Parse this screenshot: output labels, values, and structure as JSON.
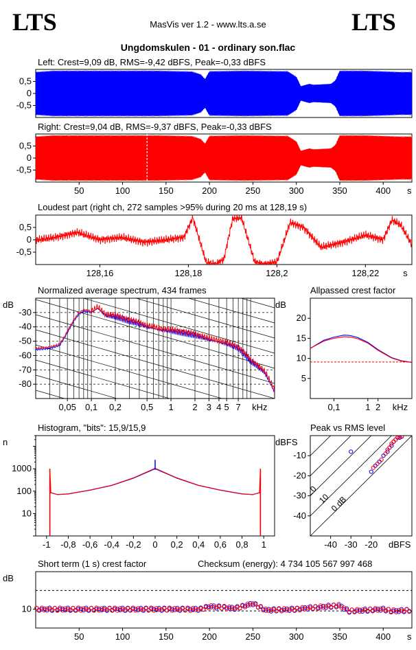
{
  "header": {
    "logo_left": "LTS",
    "logo_right": "LTS",
    "app": "MasVis ver 1.2 - www.lts.a.se",
    "track_title": "Ungdomskulen - 01 - ordinary son.flac"
  },
  "chart_data": [
    {
      "id": "left",
      "type": "area",
      "title": "Left: Crest=9,09 dB, RMS=-9,42 dBFS, Peak=-0,33 dBFS",
      "color": "#0000ff",
      "ylim": [
        -1,
        1
      ],
      "yticks": [
        "0,5",
        "0",
        "-0,5"
      ],
      "ytick_values": [
        0.5,
        0,
        -0.5
      ],
      "xlim": [
        0,
        433
      ],
      "envelope_x": [
        0,
        20,
        100,
        140,
        180,
        190,
        195,
        200,
        240,
        290,
        300,
        305,
        310,
        315,
        320,
        330,
        340,
        345,
        350,
        380,
        420,
        433
      ],
      "envelope_y": [
        0.9,
        0.95,
        0.95,
        0.95,
        0.92,
        0.8,
        0.6,
        0.93,
        0.95,
        0.93,
        0.7,
        0.3,
        0.35,
        0.4,
        0.36,
        0.38,
        0.4,
        0.55,
        0.95,
        0.95,
        0.9,
        0.9
      ]
    },
    {
      "id": "right",
      "type": "area",
      "title": "Right: Crest=9,04 dB, RMS=-9,37 dBFS, Peak=-0,33 dBFS",
      "color": "#ff0000",
      "ylim": [
        -1,
        1
      ],
      "yticks": [
        "0,5",
        "0",
        "-0,5"
      ],
      "ytick_values": [
        0.5,
        0,
        -0.5
      ],
      "xlim": [
        0,
        433
      ],
      "xticks": [
        "50",
        "100",
        "150",
        "200",
        "250",
        "300",
        "350",
        "400",
        "s"
      ],
      "xtick_values": [
        50,
        100,
        150,
        200,
        250,
        300,
        350,
        400,
        430
      ],
      "marker_x": 128.19,
      "envelope_x": [
        0,
        20,
        100,
        140,
        180,
        190,
        195,
        200,
        240,
        290,
        300,
        305,
        310,
        315,
        320,
        330,
        340,
        345,
        350,
        380,
        420,
        433
      ],
      "envelope_y": [
        0.9,
        0.95,
        0.95,
        0.95,
        0.92,
        0.8,
        0.6,
        0.93,
        0.95,
        0.93,
        0.7,
        0.3,
        0.35,
        0.4,
        0.36,
        0.38,
        0.4,
        0.55,
        0.95,
        0.95,
        0.9,
        0.9
      ]
    },
    {
      "id": "loudest",
      "type": "line",
      "title": "Loudest part (right ch, 272 samples >95% during 20 ms at 128,19 s)",
      "color": "#ff0000",
      "ylim": [
        -1,
        1
      ],
      "xlim": [
        128.1455,
        128.2305
      ],
      "yticks": [
        "0,5",
        "0",
        "-0,5"
      ],
      "ytick_values": [
        0.5,
        0,
        -0.5
      ],
      "xticks": [
        "128,16",
        "128,18",
        "128,2",
        "128,22",
        "s"
      ],
      "xtick_values": [
        128.16,
        128.18,
        128.2,
        128.22,
        128.229
      ],
      "x": [
        128.146,
        128.15,
        128.155,
        128.16,
        128.165,
        128.17,
        128.175,
        128.179,
        128.181,
        128.184,
        128.186,
        128.188,
        128.19,
        128.192,
        128.195,
        128.197,
        128.2,
        128.203,
        128.206,
        128.21,
        128.215,
        128.22,
        128.224,
        128.226,
        128.228,
        128.2305
      ],
      "y": [
        0.0,
        0.1,
        0.3,
        0.0,
        0.1,
        -0.1,
        0.0,
        0.1,
        0.9,
        -0.9,
        -1.0,
        -0.8,
        0.85,
        0.9,
        -0.9,
        -1.0,
        -0.9,
        0.7,
        0.5,
        -0.3,
        -0.1,
        0.2,
        0.0,
        0.8,
        0.6,
        -0.2
      ]
    },
    {
      "id": "spectrum",
      "type": "line",
      "title": "Normalized average spectrum, 434 frames",
      "ylabel": "dB",
      "xlabel": "kHz",
      "log_x": true,
      "xlim": [
        0.02,
        20
      ],
      "ylim": [
        -90,
        -20
      ],
      "yticks": [
        "-30",
        "-40",
        "-50",
        "-60",
        "-70",
        "-80"
      ],
      "ytick_values": [
        -30,
        -40,
        -50,
        -60,
        -70,
        -80
      ],
      "xticks": [
        "0,05",
        "0,1",
        "0,2",
        "0,5",
        "1",
        "2",
        "3",
        "4",
        "5",
        "7",
        "kHz"
      ],
      "xtick_values": [
        0.05,
        0.1,
        0.2,
        0.5,
        1,
        2,
        3,
        4,
        5,
        7,
        13
      ],
      "series": [
        {
          "color": "#0000ff",
          "x": [
            0.02,
            0.03,
            0.04,
            0.05,
            0.06,
            0.07,
            0.08,
            0.1,
            0.12,
            0.15,
            0.2,
            0.3,
            0.5,
            0.7,
            1,
            2,
            3,
            5,
            7,
            10,
            15,
            20
          ],
          "y": [
            -56,
            -55,
            -53,
            -44,
            -36,
            -31,
            -29,
            -30,
            -27,
            -32,
            -33,
            -36,
            -40,
            -42,
            -43,
            -46,
            -49,
            -52,
            -55,
            -64,
            -72,
            -86
          ]
        },
        {
          "color": "#ff0000",
          "x": [
            0.02,
            0.03,
            0.04,
            0.05,
            0.06,
            0.07,
            0.08,
            0.1,
            0.12,
            0.15,
            0.2,
            0.3,
            0.5,
            0.7,
            1,
            2,
            3,
            5,
            7,
            10,
            15,
            20
          ],
          "y": [
            -55,
            -54,
            -52,
            -43,
            -35,
            -30,
            -28,
            -29,
            -26,
            -31,
            -32,
            -35,
            -39,
            -41,
            -42,
            -45,
            -48,
            -51,
            -54,
            -63,
            -71,
            -84
          ]
        }
      ]
    },
    {
      "id": "allpassed",
      "type": "line",
      "title": "Allpassed crest factor",
      "ylabel": "dB",
      "xlabel": "kHz",
      "log_x": true,
      "xlim": [
        0.02,
        20
      ],
      "ylim": [
        0,
        25
      ],
      "yticks": [
        "20",
        "15",
        "10",
        "5"
      ],
      "ytick_values": [
        20,
        15,
        10,
        5
      ],
      "xticks": [
        "0,1",
        "1",
        "2",
        "kHz"
      ],
      "xtick_values": [
        0.1,
        1,
        2,
        9
      ],
      "reference": 9.09,
      "series": [
        {
          "color": "#0000ff",
          "x": [
            0.02,
            0.05,
            0.1,
            0.2,
            0.3,
            0.5,
            1,
            2,
            5,
            10,
            20
          ],
          "y": [
            12.5,
            14.5,
            15.3,
            15.8,
            15.7,
            15.2,
            14.0,
            12.2,
            10.2,
            9.4,
            9.0
          ]
        },
        {
          "color": "#ff0000",
          "x": [
            0.02,
            0.05,
            0.1,
            0.2,
            0.3,
            0.5,
            1,
            2,
            5,
            10,
            20
          ],
          "y": [
            12.5,
            14.3,
            15.0,
            15.4,
            15.3,
            14.9,
            13.8,
            12.0,
            10.1,
            9.3,
            9.0
          ]
        }
      ]
    },
    {
      "id": "histogram",
      "type": "line",
      "title": "Histogram, \"bits\": 15,9/15,9",
      "ylabel": "n",
      "log_y": true,
      "xlim": [
        -1.1,
        1.1
      ],
      "ylim": [
        1,
        30000
      ],
      "yticks": [
        "1000",
        "100",
        "10"
      ],
      "ytick_values": [
        1000,
        100,
        10
      ],
      "xticks": [
        "-1",
        "-0,8",
        "-0,6",
        "-0,4",
        "-0,2",
        "0",
        "0,2",
        "0,4",
        "0,6",
        "0,8",
        "1"
      ],
      "xtick_values": [
        -1,
        -0.8,
        -0.6,
        -0.4,
        -0.2,
        0,
        0.2,
        0.4,
        0.6,
        0.8,
        1
      ],
      "series": [
        {
          "color": "#0000ff",
          "x": [
            -0.97,
            -0.96,
            -0.9,
            -0.8,
            -0.6,
            -0.4,
            -0.2,
            0,
            0.2,
            0.4,
            0.6,
            0.8,
            0.9,
            0.96,
            0.97
          ],
          "y": [
            80,
            85,
            70,
            75,
            110,
            180,
            380,
            1000,
            380,
            180,
            110,
            75,
            70,
            85,
            80
          ]
        },
        {
          "color": "#ff0000",
          "x": [
            -0.97,
            -0.96,
            -0.9,
            -0.8,
            -0.6,
            -0.4,
            -0.2,
            0,
            0.2,
            0.4,
            0.6,
            0.8,
            0.9,
            0.96,
            0.97
          ],
          "y": [
            1000,
            85,
            70,
            76,
            112,
            182,
            390,
            1050,
            390,
            182,
            112,
            76,
            70,
            85,
            1000
          ]
        }
      ]
    },
    {
      "id": "peak_rms",
      "type": "scatter",
      "title": "Peak vs RMS level",
      "ylabel": "dBFS",
      "xlabel": "dBFS",
      "xlim": [
        -50,
        0
      ],
      "ylim": [
        -50,
        0
      ],
      "yticks": [
        "-10",
        "-20",
        "-30",
        "-40"
      ],
      "ytick_values": [
        -10,
        -20,
        -30,
        -40
      ],
      "xticks": [
        "-40",
        "-30",
        "-20",
        "dBFS"
      ],
      "xtick_values": [
        -40,
        -30,
        -20,
        -6
      ],
      "crest_lines": [
        "40",
        "30",
        "20",
        "10",
        "0 dB"
      ],
      "crest_values": [
        40,
        30,
        20,
        10,
        0
      ],
      "series": [
        {
          "color": "#0000ff",
          "x": [
            -30,
            -20,
            -18,
            -16,
            -14,
            -12,
            -11,
            -10,
            -9,
            -8,
            -7,
            -6,
            -5
          ],
          "y": [
            -8,
            -18,
            -15,
            -13,
            -10,
            -8,
            -6,
            -5,
            -3,
            -2,
            -1,
            -1,
            -0.5
          ]
        },
        {
          "color": "#ff0000",
          "x": [
            -19,
            -17,
            -15,
            -13,
            -12,
            -11,
            -10,
            -9,
            -8,
            -7,
            -6,
            -5
          ],
          "y": [
            -16,
            -14,
            -12,
            -9,
            -7,
            -6,
            -4,
            -3,
            -2,
            -1,
            -0.5,
            -0.3
          ]
        }
      ]
    },
    {
      "id": "short_crest",
      "type": "scatter",
      "title": "Short term (1 s) crest factor",
      "checksum": "Checksum (energy):  4 734 105 567 997 468",
      "ylabel": "dB",
      "xlim": [
        0,
        433
      ],
      "ylim": [
        0,
        30
      ],
      "yticks": [
        "10"
      ],
      "ytick_values": [
        10
      ],
      "xticks": [
        "50",
        "100",
        "150",
        "200",
        "250",
        "300",
        "350",
        "400",
        "s"
      ],
      "xtick_values": [
        50,
        100,
        150,
        200,
        250,
        300,
        350,
        400,
        430
      ],
      "reference": [
        9.09,
        20
      ],
      "segments_x": [
        0,
        190,
        200,
        230,
        250,
        265,
        300,
        310,
        350,
        360,
        400,
        410,
        433
      ],
      "segments_y": [
        10,
        10,
        11.5,
        10.5,
        13,
        9.5,
        10,
        10.5,
        12,
        9,
        10,
        9,
        9.5
      ]
    }
  ]
}
